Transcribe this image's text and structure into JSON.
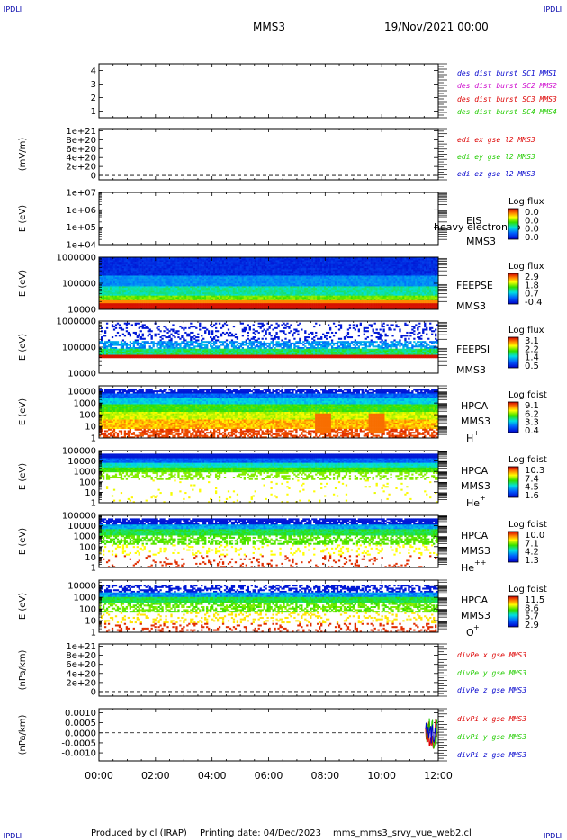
{
  "header": {
    "corner_left": "IPDLI",
    "corner_right": "IPDLI",
    "spacecraft": "MMS3",
    "datetime": "19/Nov/2021 00:00"
  },
  "footer": {
    "corner_left": "IPDLI",
    "corner_right": "IPDLI",
    "produced_by": "Produced by cl (IRAP)",
    "printing_date": "Printing date: 04/Dec/2023",
    "filename": "mms_mms3_srvy_vue_web2.cl"
  },
  "time_axis": {
    "ticks": [
      "00:00",
      "02:00",
      "04:00",
      "06:00",
      "08:00",
      "10:00",
      "12:00"
    ],
    "range_hours": [
      0,
      12
    ]
  },
  "colors": {
    "red": "#dd0000",
    "magenta": "#cc00cc",
    "green": "#22cc00",
    "blue": "#0000cc",
    "text_blue": "#0000aa"
  },
  "chart_data": [
    {
      "type": "scatter",
      "panel": "burst",
      "ylabel": "",
      "ylim": [
        0.5,
        4.5
      ],
      "yticks": [
        "4",
        "3",
        "2",
        "1"
      ],
      "yticks_values": [
        4,
        3,
        2,
        1
      ],
      "series": [
        {
          "name": "des dist burst SC1 MMS1",
          "color": "#0000cc",
          "values": []
        },
        {
          "name": "des dist burst SC2 MMS2",
          "color": "#cc00cc",
          "values": []
        },
        {
          "name": "des dist burst SC3 MMS3",
          "color": "#dd0000",
          "values": []
        },
        {
          "name": "des dist burst SC4 MMS4",
          "color": "#22cc00",
          "values": []
        }
      ]
    },
    {
      "type": "line",
      "panel": "edi",
      "ylabel": "(mV/m)",
      "ylim": [
        -1e+20,
        1.05e+21
      ],
      "yticks": [
        "1e+21",
        "8e+20",
        "6e+20",
        "4e+20",
        "2e+20",
        "0"
      ],
      "yticks_values": [
        1e+21,
        8e+20,
        6e+20,
        4e+20,
        2e+20,
        0
      ],
      "series": [
        {
          "name": "edi ex gse l2 MMS3",
          "color": "#dd0000",
          "values": []
        },
        {
          "name": "edi ey gse l2 MMS3",
          "color": "#22cc00",
          "values": []
        },
        {
          "name": "edi ez gse l2 MMS3",
          "color": "#0000cc",
          "values": []
        }
      ]
    },
    {
      "type": "heatmap",
      "panel": "eis",
      "ylabel": "E (eV)",
      "scale": "log",
      "ylim": [
        10000,
        10000000
      ],
      "yticks": [
        "1e+07",
        "1e+06",
        "1e+05",
        "1e+04"
      ],
      "label_lines": [
        "EIS",
        "MMS3"
      ],
      "overlap_text": "heavy electron to",
      "cbar_title": "Log flux",
      "cbar_ticks": [
        "0.0",
        "0.0",
        "0.0",
        "0.0"
      ]
    },
    {
      "type": "heatmap",
      "panel": "feeps_e",
      "ylabel": "E (eV)",
      "scale": "log",
      "ylim": [
        10000,
        1000000
      ],
      "yticks": [
        "1000000",
        "100000",
        "10000"
      ],
      "label_lines": [
        "FEEPSE",
        "MMS3"
      ],
      "cbar_title": "Log flux",
      "cbar_ticks": [
        "2.9",
        "1.8",
        "0.7",
        "-0.4"
      ]
    },
    {
      "type": "heatmap",
      "panel": "feeps_i",
      "ylabel": "E (eV)",
      "scale": "log",
      "ylim": [
        10000,
        1000000
      ],
      "yticks": [
        "1000000",
        "100000",
        "10000"
      ],
      "label_lines": [
        "FEEPSI",
        "MMS3"
      ],
      "cbar_title": "Log flux",
      "cbar_ticks": [
        "3.1",
        "2.2",
        "1.4",
        "0.5"
      ]
    },
    {
      "type": "heatmap",
      "panel": "hpca_h",
      "ylabel": "E (eV)",
      "scale": "log",
      "ylim": [
        1,
        30000
      ],
      "yticks": [
        "10000",
        "1000",
        "100",
        "10",
        "1"
      ],
      "label_lines": [
        "HPCA",
        "MMS3"
      ],
      "species": "H",
      "species_sup": "+",
      "cbar_title": "Log fdist",
      "cbar_ticks": [
        "9.1",
        "6.2",
        "3.3",
        "0.4"
      ]
    },
    {
      "type": "heatmap",
      "panel": "hpca_he",
      "ylabel": "E (eV)",
      "scale": "log",
      "ylim": [
        1,
        100000
      ],
      "yticks": [
        "100000",
        "10000",
        "1000",
        "100",
        "10",
        "1"
      ],
      "label_lines": [
        "HPCA",
        "MMS3"
      ],
      "species": "He",
      "species_sup": "+",
      "cbar_title": "Log fdist",
      "cbar_ticks": [
        "10.3",
        "7.4",
        "4.5",
        "1.6"
      ]
    },
    {
      "type": "heatmap",
      "panel": "hpca_hepp",
      "ylabel": "E (eV)",
      "scale": "log",
      "ylim": [
        1,
        100000
      ],
      "yticks": [
        "100000",
        "10000",
        "1000",
        "100",
        "10",
        "1"
      ],
      "label_lines": [
        "HPCA",
        "MMS3"
      ],
      "species": "He",
      "species_sup": "++",
      "cbar_title": "Log fdist",
      "cbar_ticks": [
        "10.0",
        "7.1",
        "4.2",
        "1.3"
      ]
    },
    {
      "type": "heatmap",
      "panel": "hpca_o",
      "ylabel": "E (eV)",
      "scale": "log",
      "ylim": [
        1,
        30000
      ],
      "yticks": [
        "10000",
        "1000",
        "100",
        "10",
        "1"
      ],
      "label_lines": [
        "HPCA",
        "MMS3"
      ],
      "species": "O",
      "species_sup": "+",
      "cbar_title": "Log fdist",
      "cbar_ticks": [
        "11.5",
        "8.6",
        "5.7",
        "2.9"
      ]
    },
    {
      "type": "line",
      "panel": "divpe",
      "ylabel": "(nPa/km)",
      "ylim": [
        -1e+20,
        1.05e+21
      ],
      "yticks": [
        "1e+21",
        "8e+20",
        "6e+20",
        "4e+20",
        "2e+20",
        "0"
      ],
      "yticks_values": [
        1e+21,
        8e+20,
        6e+20,
        4e+20,
        2e+20,
        0
      ],
      "series": [
        {
          "name": "divPe x gse MMS3",
          "color": "#dd0000",
          "values": []
        },
        {
          "name": "divPe y gse MMS3",
          "color": "#22cc00",
          "values": []
        },
        {
          "name": "divPe z gse MMS3",
          "color": "#0000cc",
          "values": []
        }
      ]
    },
    {
      "type": "line",
      "panel": "divpi",
      "ylabel": "(nPa/km)",
      "ylim": [
        -0.0014,
        0.0012
      ],
      "yticks": [
        "0.0010",
        "0.0005",
        "0.0000",
        "-0.0005",
        "-0.0010"
      ],
      "yticks_values": [
        0.001,
        0.0005,
        0,
        -0.0005,
        -0.001
      ],
      "burst_start_hour": 11.55,
      "series": [
        {
          "name": "divPi x gse MMS3",
          "color": "#dd0000"
        },
        {
          "name": "divPi y gse MMS3",
          "color": "#22cc00"
        },
        {
          "name": "divPi z gse MMS3",
          "color": "#0000cc"
        }
      ]
    }
  ]
}
